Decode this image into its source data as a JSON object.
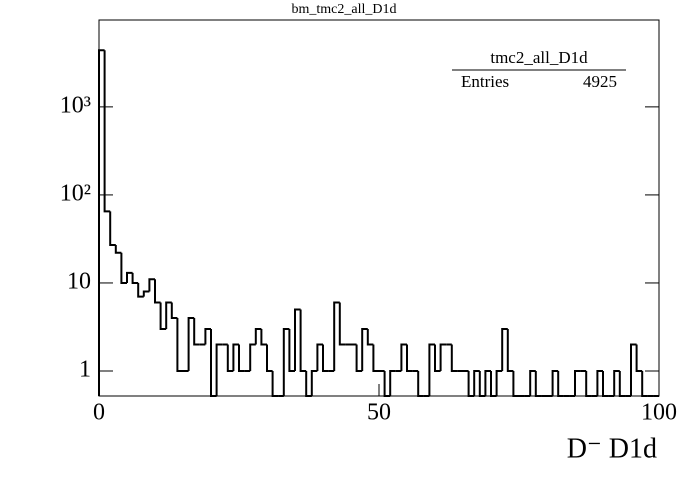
{
  "chart_data": {
    "type": "histogram",
    "title": "bm_tmc2_all_D1d",
    "xlabel": "D⁻ D1d",
    "log_y": true,
    "color": "#000000",
    "bins": [
      0,
      1,
      2,
      3,
      4,
      5,
      6,
      7,
      8,
      9,
      10,
      11,
      12,
      13,
      14,
      15,
      16,
      17,
      18,
      19,
      20,
      21,
      22,
      23,
      24,
      25,
      26,
      27,
      28,
      29,
      30,
      31,
      32,
      33,
      34,
      35,
      36,
      37,
      38,
      39,
      40,
      41,
      42,
      43,
      44,
      45,
      46,
      47,
      48,
      49,
      50,
      51,
      52,
      53,
      54,
      55,
      56,
      57,
      58,
      59,
      60,
      61,
      62,
      63,
      64,
      65,
      66,
      67,
      68,
      69,
      70,
      71,
      72,
      73,
      74,
      75,
      76,
      77,
      78,
      79,
      80,
      81,
      82,
      83,
      84,
      85,
      86,
      87,
      88,
      89,
      90,
      91,
      92,
      93,
      94,
      95,
      96,
      97,
      98,
      99,
      100
    ],
    "values": [
      4400,
      65,
      27,
      22,
      10,
      13,
      10,
      7,
      8,
      11,
      6,
      3,
      6,
      4,
      1,
      1,
      4,
      2,
      2,
      3,
      0,
      2,
      2,
      1,
      2,
      1,
      1,
      2,
      3,
      2,
      1,
      0,
      0,
      3,
      1,
      5,
      1,
      0,
      1,
      2,
      1,
      1,
      6,
      2,
      2,
      2,
      1,
      3,
      2,
      1,
      1,
      0,
      1,
      1,
      2,
      1,
      1,
      0,
      0,
      2,
      1,
      2,
      2,
      1,
      1,
      1,
      0,
      1,
      0,
      1,
      0,
      1,
      3,
      1,
      0,
      0,
      0,
      1,
      0,
      0,
      0,
      1,
      0,
      0,
      0,
      1,
      1,
      0,
      0,
      1,
      0,
      0,
      1,
      0,
      0,
      2,
      1,
      0,
      0,
      0
    ],
    "xlim": [
      0,
      100
    ],
    "xticks": [
      0,
      50,
      100
    ],
    "ylim": [
      0.52,
      9700
    ],
    "yticks": [
      1,
      10,
      {
        "value": 100,
        "label": "10²"
      },
      {
        "value": 1000,
        "label": "10³"
      }
    ],
    "stats": {
      "name": "tmc2_all_D1d",
      "entries_label": "Entries",
      "entries": 4925
    }
  }
}
